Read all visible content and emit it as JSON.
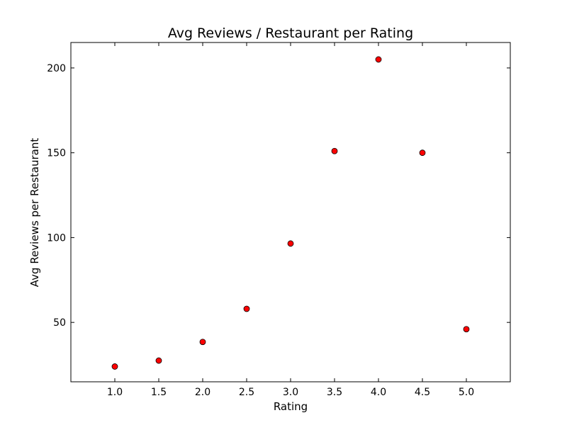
{
  "chart_data": {
    "type": "scatter",
    "title": "Avg Reviews / Restaurant per Rating",
    "xlabel": "Rating",
    "ylabel": "Avg Reviews per Restaurant",
    "xlim": [
      0.5,
      5.5
    ],
    "ylim": [
      15,
      215
    ],
    "x_ticks": [
      "1.0",
      "1.5",
      "2.0",
      "2.5",
      "3.0",
      "3.5",
      "4.0",
      "4.5",
      "5.0"
    ],
    "y_ticks": [
      "50",
      "100",
      "150",
      "200"
    ],
    "grid": false,
    "marker_color": "#ff0000",
    "marker_edge_color": "#000000",
    "points": [
      {
        "x": 1.0,
        "y": 24
      },
      {
        "x": 1.5,
        "y": 27.5
      },
      {
        "x": 2.0,
        "y": 38.5
      },
      {
        "x": 2.5,
        "y": 58
      },
      {
        "x": 3.0,
        "y": 96.5
      },
      {
        "x": 3.5,
        "y": 151
      },
      {
        "x": 4.0,
        "y": 205
      },
      {
        "x": 4.5,
        "y": 150
      },
      {
        "x": 5.0,
        "y": 46
      }
    ]
  }
}
